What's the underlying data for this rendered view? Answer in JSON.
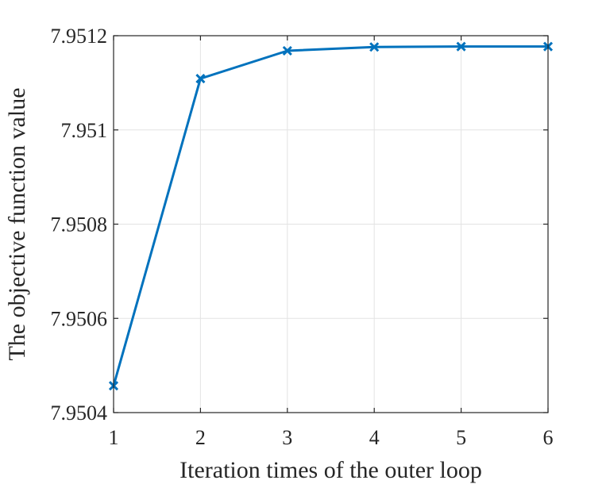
{
  "chart_data": {
    "type": "line",
    "title": "",
    "xlabel": "Iteration times of the outer loop",
    "ylabel": "The objective function value",
    "xlim": [
      1,
      6
    ],
    "ylim": [
      7.9504,
      7.9512
    ],
    "xticks": [
      1,
      2,
      3,
      4,
      5,
      6
    ],
    "xtick_labels": [
      "1",
      "2",
      "3",
      "4",
      "5",
      "6"
    ],
    "yticks": [
      7.9504,
      7.9506,
      7.9508,
      7.951,
      7.9512
    ],
    "ytick_labels": [
      "7.9504",
      "7.9506",
      "7.9508",
      "7.951",
      "7.9512"
    ],
    "grid": true,
    "marker": "x",
    "series": [
      {
        "color": "#0072BD",
        "x": [
          1,
          2,
          3,
          4,
          5,
          6
        ],
        "y": [
          7.950457,
          7.951109,
          7.951168,
          7.951176,
          7.951177,
          7.951177
        ]
      }
    ]
  }
}
